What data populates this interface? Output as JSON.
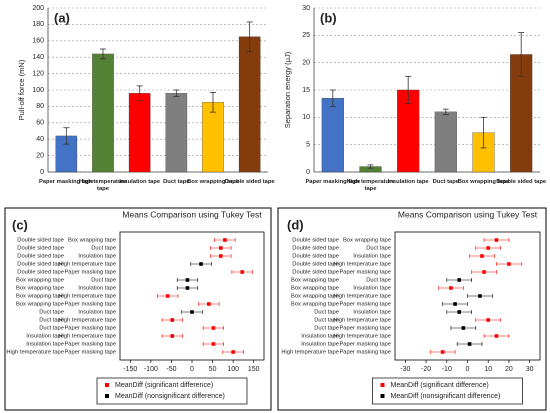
{
  "chart_data": [
    {
      "type": "bar",
      "label": "(a)",
      "ylabel": "Pull-off force (mN)",
      "categories": [
        "Paper masking tape",
        "High temperature tape",
        "Insulation tape",
        "Duct tape",
        "Box wrapping tape",
        "Double sided tape"
      ],
      "values": [
        44,
        144,
        96,
        96,
        85,
        165
      ],
      "errors": [
        10,
        6,
        9,
        4,
        12,
        18
      ],
      "colors": [
        "#4472c4",
        "#548235",
        "#ff0000",
        "#7f7f7f",
        "#ffc000",
        "#843c0c"
      ],
      "ylim": [
        0,
        200
      ],
      "yticks": [
        0,
        20,
        40,
        60,
        80,
        100,
        120,
        140,
        160,
        180,
        200
      ],
      "grid": true
    },
    {
      "type": "bar",
      "label": "(b)",
      "ylabel": "Separation energy (μJ)",
      "categories": [
        "Paper masking tape",
        "High temperature tape",
        "Insulation tape",
        "Duct tape",
        "Box wrapping tape",
        "Double sided tape"
      ],
      "values": [
        13.5,
        1,
        15,
        11,
        7.2,
        21.5
      ],
      "errors": [
        1.5,
        0.3,
        2.5,
        0.5,
        2.8,
        4
      ],
      "colors": [
        "#4472c4",
        "#548235",
        "#ff0000",
        "#7f7f7f",
        "#ffc000",
        "#843c0c"
      ],
      "ylim": [
        0,
        30
      ],
      "yticks": [
        0,
        5,
        10,
        15,
        20,
        25,
        30
      ],
      "grid": true
    },
    {
      "type": "tukey",
      "label": "(c)",
      "title": "Means Comparison using Tukey Test",
      "categories": [
        [
          "Double sided tape",
          "Box wrapping tape"
        ],
        [
          "Double sided tape",
          "Duct tape"
        ],
        [
          "Double sided tape",
          "Insulation tape"
        ],
        [
          "Double sided tape",
          "High temperature tape"
        ],
        [
          "Double sided tape",
          "Paper masking tape"
        ],
        [
          "Box wrapping tape",
          "Duct tape"
        ],
        [
          "Box wrapping tape",
          "Insulation tape"
        ],
        [
          "Box wrapping tape",
          "High temperature tape"
        ],
        [
          "Box wrapping tape",
          "Paper masking tape"
        ],
        [
          "Duct tape",
          "Insulation tape"
        ],
        [
          "Duct tape",
          "High temperature tape"
        ],
        [
          "Duct tape",
          "Paper masking tape"
        ],
        [
          "Insulation tape",
          "High temperature tape"
        ],
        [
          "Insulation tape",
          "Paper masking tape"
        ],
        [
          "High temperature tape",
          "Paper masking tape"
        ]
      ],
      "series": [
        {
          "name": "MeanDiff (significant difference)",
          "color": "#ff0000",
          "values": [
            80,
            70,
            70,
            null,
            122,
            null,
            null,
            -59,
            41,
            null,
            -48,
            52,
            -48,
            52,
            100
          ],
          "errors": [
            25,
            25,
            25,
            null,
            25,
            null,
            null,
            25,
            25,
            null,
            25,
            25,
            25,
            25,
            25
          ]
        },
        {
          "name": "MeanDiff (nonsignificant difference)",
          "color": "#000000",
          "values": [
            null,
            null,
            null,
            22,
            null,
            -11,
            -11,
            null,
            null,
            0,
            null,
            null,
            null,
            null,
            null
          ],
          "errors": [
            null,
            null,
            null,
            25,
            null,
            25,
            25,
            null,
            null,
            25,
            null,
            null,
            null,
            null,
            null
          ]
        }
      ],
      "xlim": [
        -175,
        175
      ],
      "xticks": [
        -150,
        -100,
        -50,
        0,
        50,
        100,
        150
      ]
    },
    {
      "type": "tukey",
      "label": "(d)",
      "title": "Means Comparison using Tukey Test",
      "categories": [
        [
          "Double sided tape",
          "Box wrapping tape"
        ],
        [
          "Double sided tape",
          "Duct tape"
        ],
        [
          "Double sided tape",
          "Insulation tape"
        ],
        [
          "Double sided tape",
          "High temperature tape"
        ],
        [
          "Double sided tape",
          "Paper masking tape"
        ],
        [
          "Box wrapping tape",
          "Duct tape"
        ],
        [
          "Box wrapping tape",
          "Insulation tape"
        ],
        [
          "Box wrapping tape",
          "High temperature tape"
        ],
        [
          "Box wrapping tape",
          "Paper masking tape"
        ],
        [
          "Duct tape",
          "Insulation tape"
        ],
        [
          "Duct tape",
          "High temperature tape"
        ],
        [
          "Duct tape",
          "Paper masking tape"
        ],
        [
          "Insulation tape",
          "High temperature tape"
        ],
        [
          "Insulation tape",
          "Paper masking tape"
        ],
        [
          "High temperature tape",
          "Paper masking tape"
        ]
      ],
      "series": [
        {
          "name": "MeanDiff (significant difference)",
          "color": "#ff0000",
          "values": [
            14,
            10,
            7,
            20,
            8,
            null,
            -8,
            null,
            null,
            null,
            10,
            null,
            14,
            null,
            -12
          ],
          "errors": [
            6,
            6,
            6,
            6,
            6,
            null,
            6,
            null,
            null,
            null,
            6,
            null,
            6,
            null,
            6
          ]
        },
        {
          "name": "MeanDiff (nonsignificant difference)",
          "color": "#000000",
          "values": [
            null,
            null,
            null,
            null,
            null,
            -4,
            null,
            6,
            -6,
            -4,
            null,
            -2,
            null,
            1,
            null
          ],
          "errors": [
            null,
            null,
            null,
            null,
            null,
            6,
            null,
            6,
            6,
            6,
            null,
            6,
            null,
            6,
            null
          ]
        }
      ],
      "xlim": [
        -35,
        35
      ],
      "xticks": [
        -30,
        -20,
        -10,
        0,
        10,
        20,
        30
      ]
    }
  ]
}
